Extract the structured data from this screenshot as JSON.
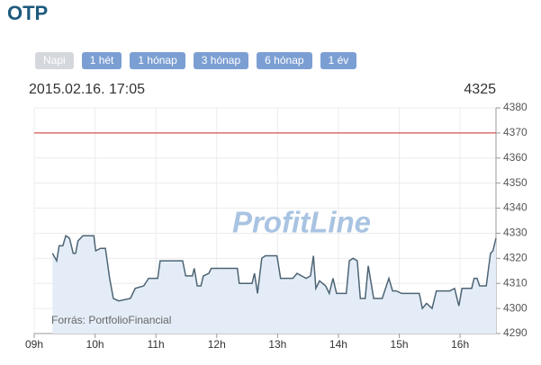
{
  "chart_data": {
    "type": "line",
    "title": "OTP",
    "buttons": [
      "Napi",
      "1 hét",
      "1 hónap",
      "3 hónap",
      "6 hónap",
      "1 év"
    ],
    "timestamp": "2015.02.16. 17:05",
    "last_price": "4325",
    "watermark": "ProfitLine",
    "source": "Forrás: PortfolioFinancial",
    "color": "#4d6475",
    "fill": "#e4edf7",
    "reference_line": 4370,
    "reference_color": "#d9534f",
    "x": [
      9.3,
      9.37,
      9.41,
      9.47,
      9.52,
      9.58,
      9.64,
      9.68,
      9.72,
      9.8,
      9.98,
      10.01,
      10.09,
      10.17,
      10.24,
      10.3,
      10.39,
      10.58,
      10.66,
      10.8,
      10.88,
      11.03,
      11.07,
      11.44,
      11.49,
      11.6,
      11.63,
      11.68,
      11.74,
      11.78,
      11.87,
      11.91,
      12.34,
      12.37,
      12.58,
      12.62,
      12.67,
      12.74,
      12.8,
      12.99,
      13.05,
      13.25,
      13.32,
      13.47,
      13.54,
      13.59,
      13.63,
      13.69,
      13.79,
      13.85,
      13.91,
      13.97,
      14.13,
      14.18,
      14.24,
      14.31,
      14.36,
      14.44,
      14.49,
      14.58,
      14.72,
      14.83,
      14.89,
      14.95,
      15.04,
      15.33,
      15.38,
      15.45,
      15.54,
      15.61,
      15.83,
      15.91,
      15.98,
      16.03,
      16.19,
      16.23,
      16.28,
      16.32,
      16.43,
      16.5,
      16.54,
      16.59
    ],
    "values": [
      4322,
      4319,
      4325,
      4325,
      4329,
      4328,
      4322,
      4322,
      4327,
      4329,
      4329,
      4323,
      4324,
      4324,
      4312,
      4304,
      4303,
      4304,
      4308,
      4309,
      4312,
      4312,
      4319,
      4319,
      4313,
      4313,
      4316,
      4309,
      4309,
      4313,
      4314,
      4316,
      4316,
      4310,
      4310,
      4314,
      4306,
      4320,
      4321,
      4321,
      4312,
      4312,
      4314,
      4312,
      4313,
      4321,
      4308,
      4311,
      4309,
      4306,
      4312,
      4306,
      4306,
      4319,
      4320,
      4319,
      4304,
      4304,
      4317,
      4304,
      4304,
      4312,
      4307,
      4307,
      4306,
      4306,
      4300,
      4302,
      4300,
      4307,
      4307,
      4308,
      4301,
      4308,
      4308,
      4312,
      4312,
      4309,
      4309,
      4322,
      4323,
      4328
    ],
    "xlim": [
      9,
      16.59
    ],
    "ylim": [
      4290,
      4380
    ],
    "xticks": [
      {
        "value": 9,
        "label": "09h"
      },
      {
        "value": 10,
        "label": "10h"
      },
      {
        "value": 11,
        "label": "11h"
      },
      {
        "value": 12,
        "label": "12h"
      },
      {
        "value": 13,
        "label": "13h"
      },
      {
        "value": 14,
        "label": "14h"
      },
      {
        "value": 15,
        "label": "15h"
      },
      {
        "value": 16,
        "label": "16h"
      }
    ],
    "yticks": [
      4290,
      4300,
      4310,
      4320,
      4330,
      4340,
      4350,
      4360,
      4370,
      4380
    ],
    "grid": true
  }
}
